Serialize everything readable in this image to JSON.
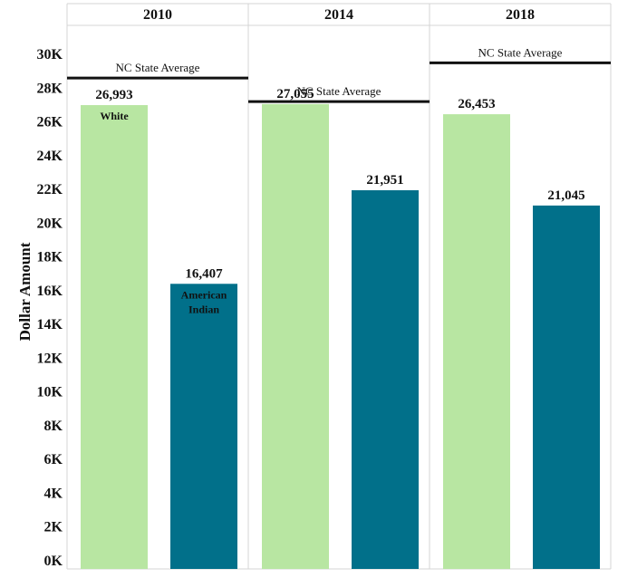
{
  "chart_data": {
    "type": "bar",
    "ylabel": "Dollar Amount",
    "ylim": [
      0,
      30000
    ],
    "yticks": [
      "0K",
      "2K",
      "4K",
      "6K",
      "8K",
      "10K",
      "12K",
      "14K",
      "16K",
      "18K",
      "20K",
      "22K",
      "24K",
      "26K",
      "28K",
      "30K"
    ],
    "panels": [
      {
        "year": "2010",
        "state_average": 28600,
        "state_average_label": "NC State Average",
        "bars": [
          {
            "group": "White",
            "value": 26993,
            "value_label": "26,993",
            "inner_label": "White",
            "color": "#b8e6a2"
          },
          {
            "group": "American Indian",
            "value": 16407,
            "value_label": "16,407",
            "inner_label": "American Indian",
            "color": "#01708a"
          }
        ]
      },
      {
        "year": "2014",
        "state_average": 27200,
        "state_average_label": "NC State Average",
        "bars": [
          {
            "group": "White",
            "value": 27055,
            "value_label": "27,055",
            "inner_label": "",
            "color": "#b8e6a2"
          },
          {
            "group": "American Indian",
            "value": 21951,
            "value_label": "21,951",
            "inner_label": "",
            "color": "#01708a"
          }
        ]
      },
      {
        "year": "2018",
        "state_average": 29500,
        "state_average_label": "NC State Average",
        "bars": [
          {
            "group": "White",
            "value": 26453,
            "value_label": "26,453",
            "inner_label": "",
            "color": "#b8e6a2"
          },
          {
            "group": "American Indian",
            "value": 21045,
            "value_label": "21,045",
            "inner_label": "",
            "color": "#01708a"
          }
        ]
      }
    ],
    "grid": true
  }
}
